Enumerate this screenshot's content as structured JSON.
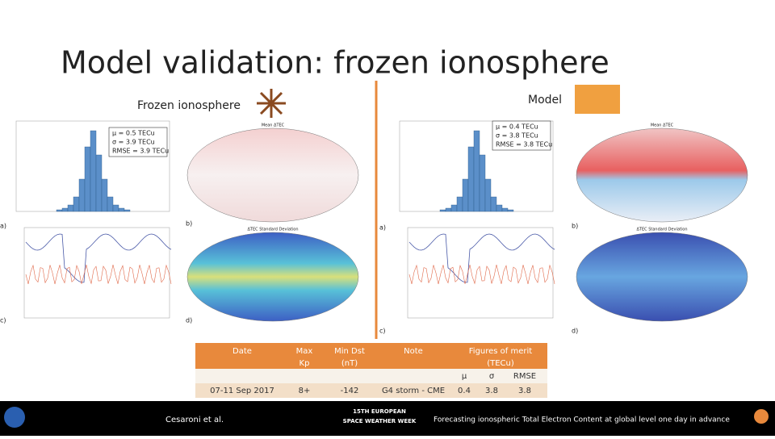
{
  "slide": {
    "title": "Model validation: frozen ionosphere",
    "left": {
      "heading": "Frozen ionosphere",
      "stats": [
        "μ = 0.5 TECu",
        "σ = 3.9 TECu",
        "RMSE = 3.9 TECu"
      ],
      "map_titles": [
        "Mean ΔTEC",
        "ΔTEC Standard Deviation"
      ],
      "panel_labels": [
        "a)",
        "b)",
        "c)",
        "d)"
      ]
    },
    "right": {
      "heading": "Model",
      "stats": [
        "μ = 0.4 TECu",
        "σ = 3.8 TECu",
        "RMSE = 3.8 TECu"
      ],
      "map_titles": [
        "Mean ΔTEC",
        "ΔTEC Standard Deviation"
      ],
      "panel_labels": [
        "a)",
        "b)",
        "c)",
        "d)"
      ]
    },
    "table": {
      "columns": [
        [
          "Date"
        ],
        [
          "Max",
          "Kp"
        ],
        [
          "Min Dst",
          "(nT)"
        ],
        [
          "Note"
        ],
        [
          "Figures of merit",
          "(TECu)"
        ]
      ],
      "subcolumns": [
        "μ",
        "σ",
        "RMSE"
      ],
      "rows": [
        [
          "07-11 Sep 2017",
          "8+",
          "-142",
          "G4 storm - CME",
          "0.4",
          "3.8",
          "3.8"
        ]
      ]
    },
    "footer": {
      "author": "Cesaroni et al.",
      "event": [
        "15TH EUROPEAN",
        "SPACE WEATHER WEEK"
      ],
      "caption": "Forecasting ionospheric Total Electron Content at global level one day in advance"
    }
  }
}
